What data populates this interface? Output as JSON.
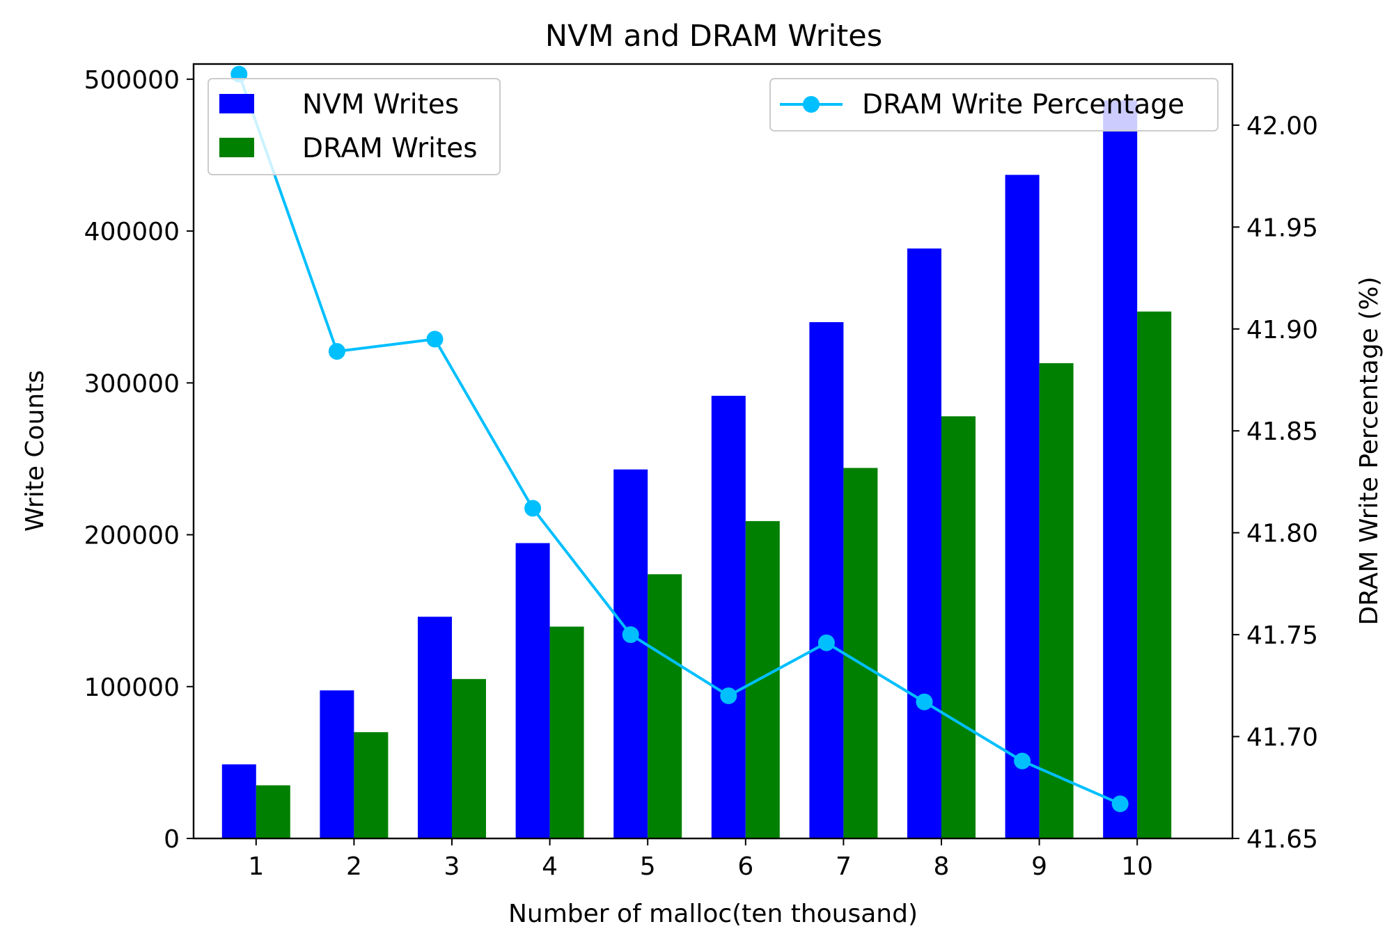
{
  "chart_data": {
    "type": "bar",
    "title": "NVM and DRAM Writes",
    "xlabel": "Number of malloc(ten thousand)",
    "ylabel": "Write Counts",
    "y2label": "DRAM Write Percentage (%)",
    "categories": [
      "1",
      "2",
      "3",
      "4",
      "5",
      "6",
      "7",
      "8",
      "9",
      "10"
    ],
    "ylim": [
      0,
      510000
    ],
    "y2lim": [
      41.65,
      42.03
    ],
    "yticks": [
      "0",
      "100000",
      "200000",
      "300000",
      "400000",
      "500000"
    ],
    "y2ticks": [
      "41.65",
      "41.70",
      "41.75",
      "41.80",
      "41.85",
      "41.90",
      "41.95",
      "42.00"
    ],
    "series": [
      {
        "name": "NVM Writes",
        "kind": "bar",
        "color": "#0000ff",
        "values": [
          48800,
          97500,
          146000,
          194500,
          243000,
          291500,
          340000,
          388500,
          437000,
          486000
        ]
      },
      {
        "name": "DRAM Writes",
        "kind": "bar",
        "color": "#008000",
        "values": [
          35000,
          70000,
          105000,
          139500,
          174000,
          209000,
          244000,
          278000,
          313000,
          347000
        ]
      },
      {
        "name": "DRAM Write Percentage",
        "kind": "line",
        "axis": "right",
        "color": "#00bfff",
        "values": [
          42.025,
          41.889,
          41.895,
          41.812,
          41.75,
          41.72,
          41.746,
          41.717,
          41.688,
          41.667
        ]
      }
    ],
    "legend_left_position": "top-left",
    "legend_right_position": "top-right",
    "grid": false
  }
}
